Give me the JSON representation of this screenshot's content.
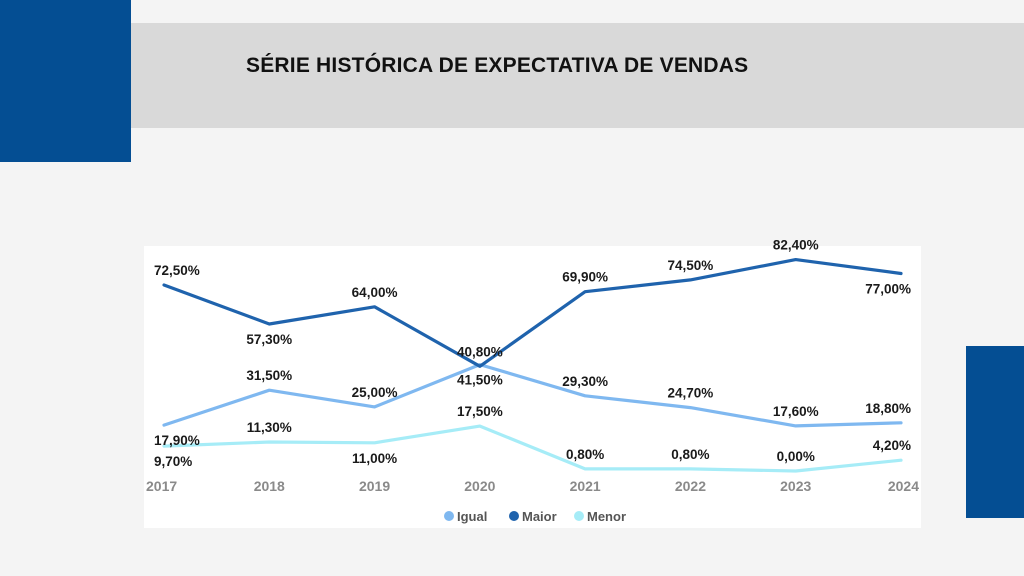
{
  "page": {
    "title": "SÉRIE HISTÓRICA DE EXPECTATIVA DE VENDAS"
  },
  "colors": {
    "brand_blue": "#044e93",
    "title_bar": "#d9d9d9",
    "background": "#f4f4f4"
  },
  "chart_data": {
    "type": "line",
    "title": "SÉRIE HISTÓRICA DE EXPECTATIVA DE VENDAS",
    "categories": [
      "2017",
      "2018",
      "2019",
      "2020",
      "2021",
      "2022",
      "2023",
      "2024"
    ],
    "series": [
      {
        "name": "Igual",
        "color": "#7fb8f0",
        "values": [
          17.9,
          31.5,
          25.0,
          41.5,
          29.3,
          24.7,
          17.6,
          18.8
        ],
        "labels": [
          "17,90%",
          "31,50%",
          "25,00%",
          "41,50%",
          "29,30%",
          "24,70%",
          "17,60%",
          "18,80%"
        ]
      },
      {
        "name": "Maior",
        "color": "#1f63ad",
        "values": [
          72.5,
          57.3,
          64.0,
          40.8,
          69.9,
          74.5,
          82.4,
          77.0
        ],
        "labels": [
          "72,50%",
          "57,30%",
          "64,00%",
          "40,80%",
          "69,90%",
          "74,50%",
          "82,40%",
          "77,00%"
        ]
      },
      {
        "name": "Menor",
        "color": "#a6ecf7",
        "values": [
          9.7,
          11.3,
          11.0,
          17.5,
          0.8,
          0.8,
          0.0,
          4.2
        ],
        "labels": [
          "9,70%",
          "11,30%",
          "11,00%",
          "17,50%",
          "0,80%",
          "0,80%",
          "0,00%",
          "4,20%"
        ]
      }
    ],
    "legend": [
      "Igual",
      "Maior",
      "Menor"
    ],
    "legend_position": "bottom",
    "grid": false,
    "ylim": [
      0,
      85
    ]
  }
}
